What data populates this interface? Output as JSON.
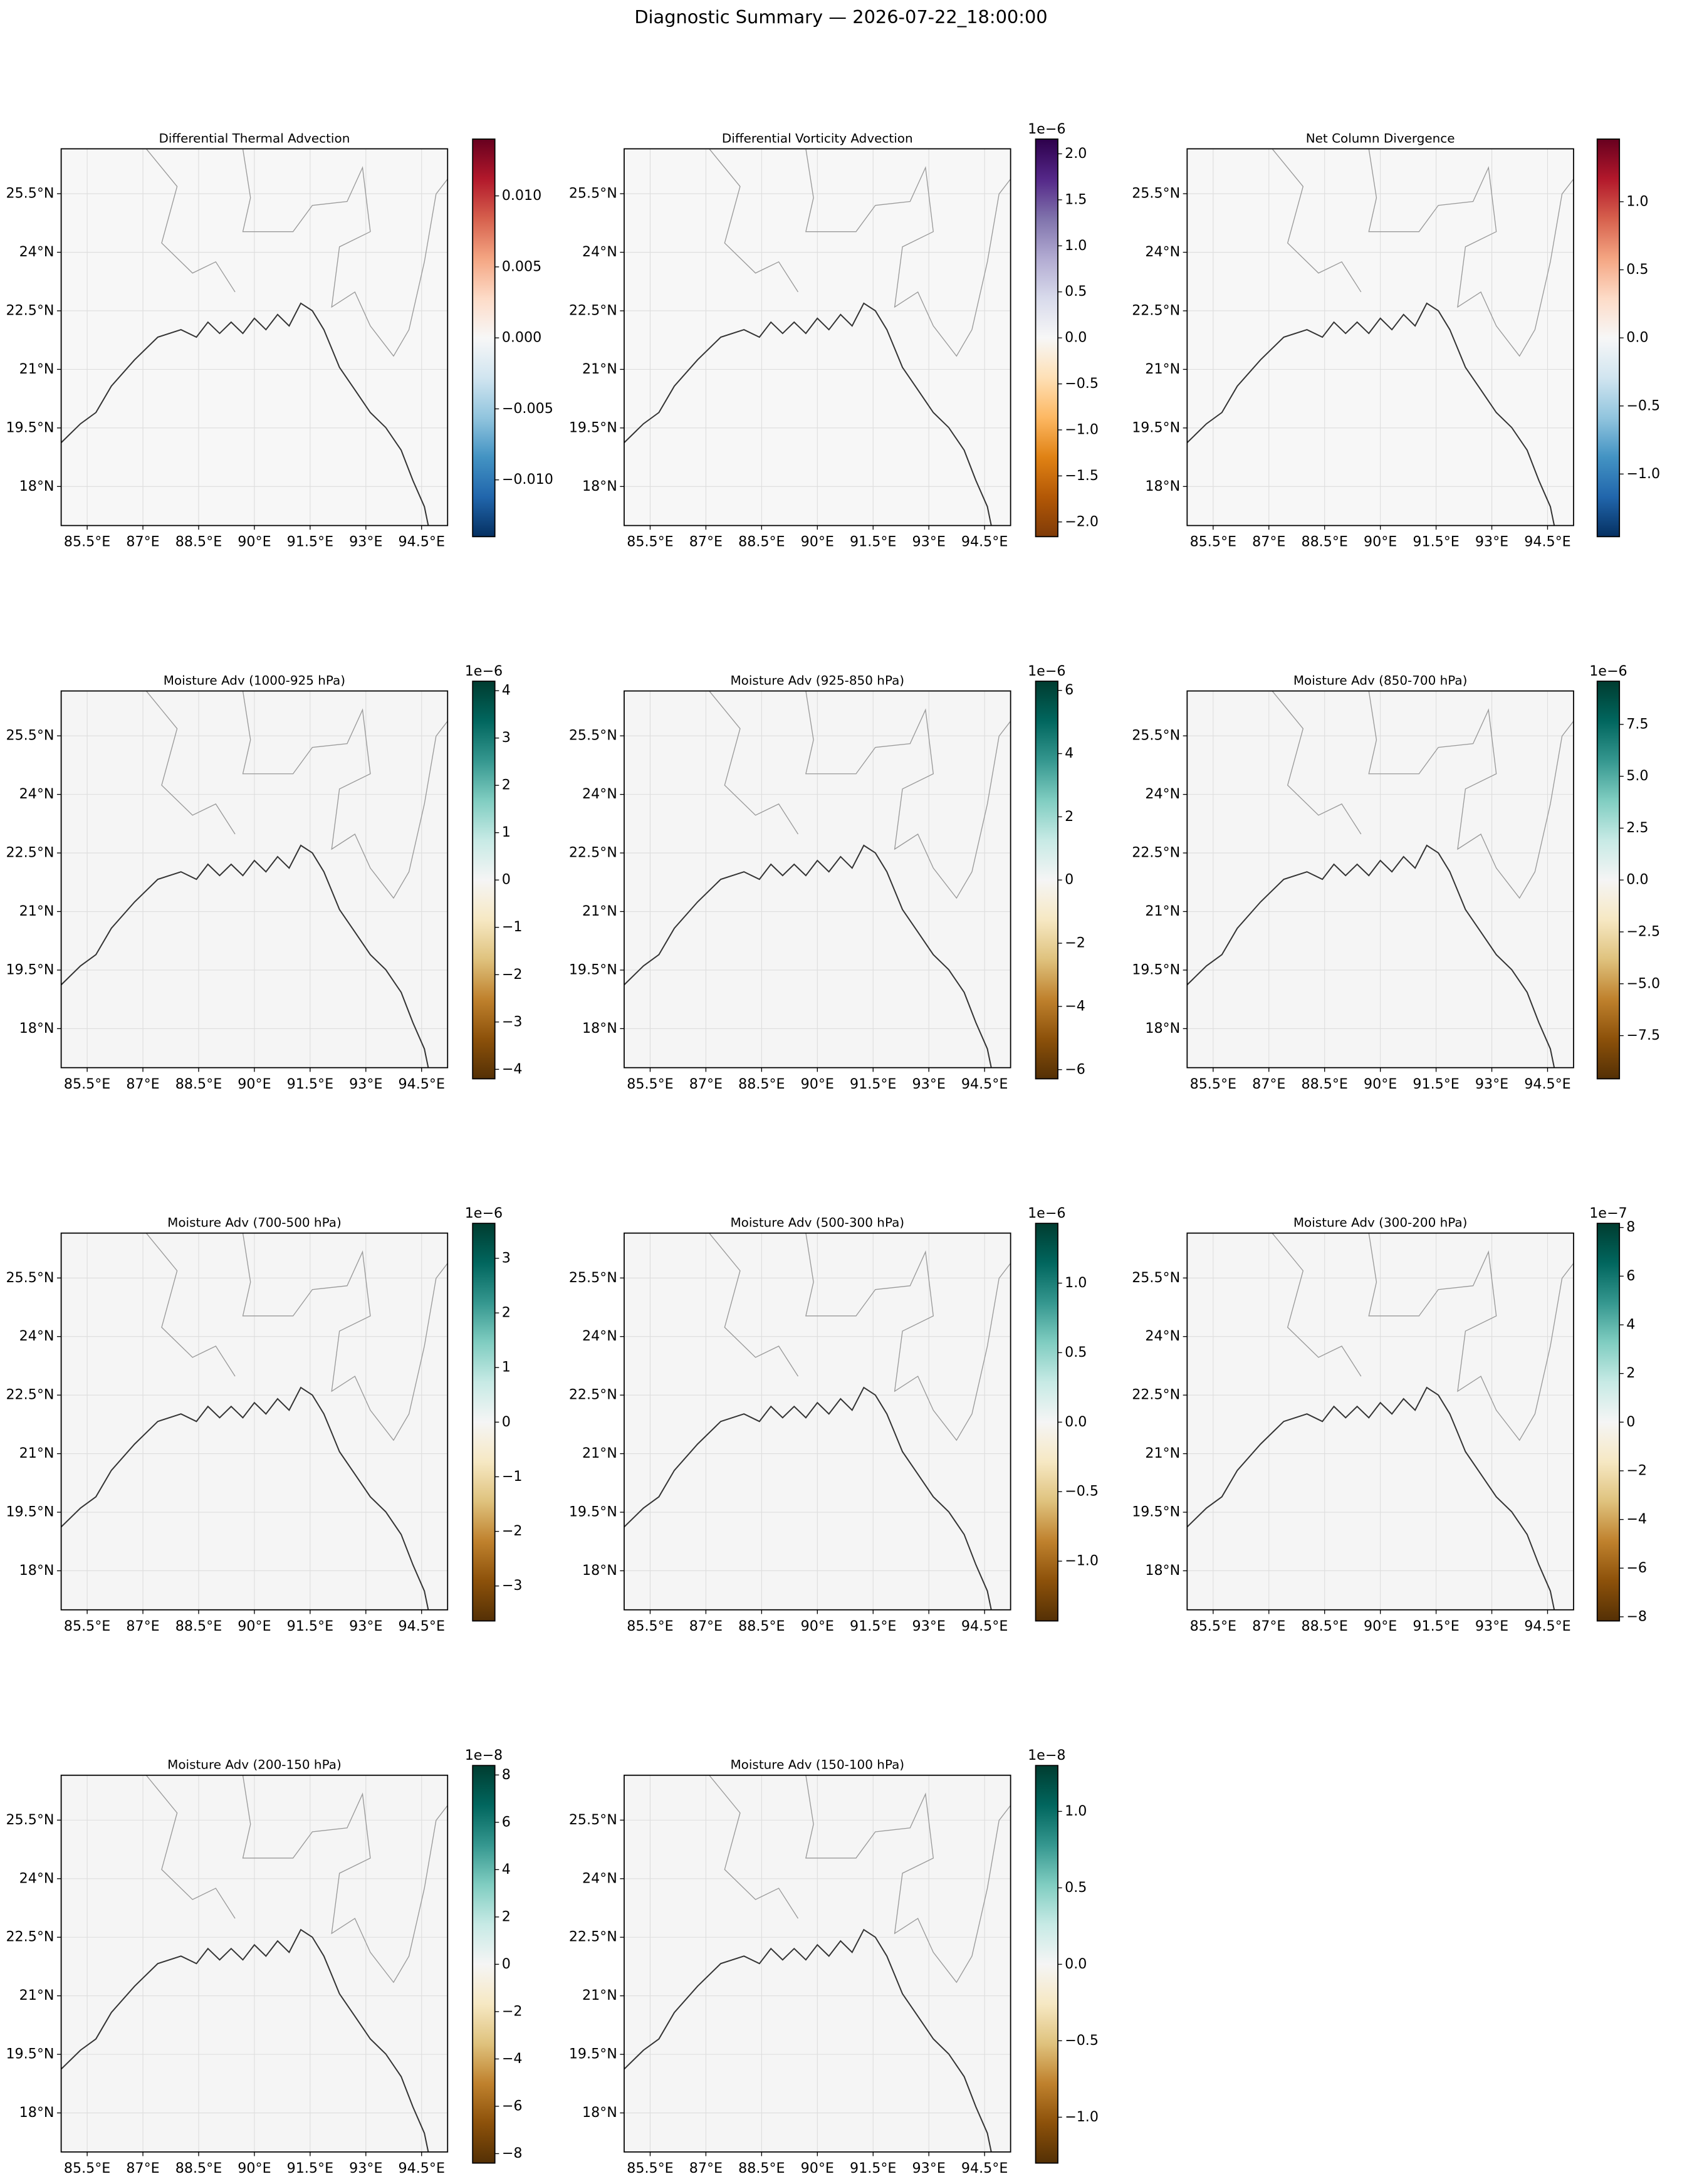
{
  "title": "Diagnostic Summary — 2026-07-22_18:00:00",
  "chart_data": [
    {
      "type": "heatmap",
      "title": "Differential Thermal Advection",
      "colormap": "RdBu_r",
      "grid": true,
      "xlim": [
        84.8,
        95.2
      ],
      "ylim": [
        17.0,
        26.65
      ],
      "xticks": [
        {
          "value": 85.5,
          "label": "85.5°E"
        },
        {
          "value": 87,
          "label": "87°E"
        },
        {
          "value": 88.5,
          "label": "88.5°E"
        },
        {
          "value": 90,
          "label": "90°E"
        },
        {
          "value": 91.5,
          "label": "91.5°E"
        },
        {
          "value": 93,
          "label": "93°E"
        },
        {
          "value": 94.5,
          "label": "94.5°E"
        }
      ],
      "yticks": [
        {
          "value": 18,
          "label": "18°N"
        },
        {
          "value": 19.5,
          "label": "19.5°N"
        },
        {
          "value": 21,
          "label": "21°N"
        },
        {
          "value": 22.5,
          "label": "22.5°N"
        },
        {
          "value": 24,
          "label": "24°N"
        },
        {
          "value": 25.5,
          "label": "25.5°N"
        }
      ],
      "clim": [
        -0.014,
        0.014
      ],
      "cticks": [
        {
          "value": -0.01,
          "label": "−0.010"
        },
        {
          "value": -0.005,
          "label": "−0.005"
        },
        {
          "value": 0,
          "label": "0.000"
        },
        {
          "value": 0.005,
          "label": "0.005"
        },
        {
          "value": 0.01,
          "label": "0.010"
        }
      ]
    },
    {
      "type": "heatmap",
      "title": "Differential Vorticity Advection",
      "colormap": "PuOr",
      "grid": true,
      "xlim": [
        84.8,
        95.2
      ],
      "ylim": [
        17.0,
        26.65
      ],
      "xticks": [
        {
          "value": 85.5,
          "label": "85.5°E"
        },
        {
          "value": 87,
          "label": "87°E"
        },
        {
          "value": 88.5,
          "label": "88.5°E"
        },
        {
          "value": 90,
          "label": "90°E"
        },
        {
          "value": 91.5,
          "label": "91.5°E"
        },
        {
          "value": 93,
          "label": "93°E"
        },
        {
          "value": 94.5,
          "label": "94.5°E"
        }
      ],
      "yticks": [
        {
          "value": 18,
          "label": "18°N"
        },
        {
          "value": 19.5,
          "label": "19.5°N"
        },
        {
          "value": 21,
          "label": "21°N"
        },
        {
          "value": 22.5,
          "label": "22.5°N"
        },
        {
          "value": 24,
          "label": "24°N"
        },
        {
          "value": 25.5,
          "label": "25.5°N"
        }
      ],
      "clim": [
        -2.16,
        2.16
      ],
      "offset_text": "1e−6",
      "cticks": [
        {
          "value": -2,
          "label": "−2.0"
        },
        {
          "value": -1.5,
          "label": "−1.5"
        },
        {
          "value": -1,
          "label": "−1.0"
        },
        {
          "value": -0.5,
          "label": "−0.5"
        },
        {
          "value": 0,
          "label": "0.0"
        },
        0.5,
        {
          "value": 1,
          "label": "1.0"
        },
        1.5,
        {
          "value": 2,
          "label": "2.0"
        }
      ]
    },
    {
      "type": "heatmap",
      "title": "Net Column Divergence",
      "colormap": "RdBu_r",
      "grid": true,
      "xlim": [
        84.8,
        95.2
      ],
      "ylim": [
        17.0,
        26.65
      ],
      "xticks": [
        {
          "value": 85.5,
          "label": "85.5°E"
        },
        {
          "value": 87,
          "label": "87°E"
        },
        {
          "value": 88.5,
          "label": "88.5°E"
        },
        {
          "value": 90,
          "label": "90°E"
        },
        {
          "value": 91.5,
          "label": "91.5°E"
        },
        {
          "value": 93,
          "label": "93°E"
        },
        {
          "value": 94.5,
          "label": "94.5°E"
        }
      ],
      "yticks": [
        {
          "value": 18,
          "label": "18°N"
        },
        {
          "value": 19.5,
          "label": "19.5°N"
        },
        {
          "value": 21,
          "label": "21°N"
        },
        {
          "value": 22.5,
          "label": "22.5°N"
        },
        {
          "value": 24,
          "label": "24°N"
        },
        {
          "value": 25.5,
          "label": "25.5°N"
        }
      ],
      "clim": [
        -1.46,
        1.46
      ],
      "cticks": [
        {
          "value": -1,
          "label": "−1.0"
        },
        {
          "value": -0.5,
          "label": "−0.5"
        },
        {
          "value": 0,
          "label": "0.0"
        },
        0.5,
        {
          "value": 1,
          "label": "1.0"
        }
      ]
    },
    {
      "type": "heatmap",
      "title": "Moisture Adv (1000-925 hPa)",
      "colormap": "BrBG",
      "grid": true,
      "xlim": [
        84.8,
        95.2
      ],
      "ylim": [
        17.0,
        26.65
      ],
      "xticks": [
        {
          "value": 85.5,
          "label": "85.5°E"
        },
        {
          "value": 87,
          "label": "87°E"
        },
        {
          "value": 88.5,
          "label": "88.5°E"
        },
        {
          "value": 90,
          "label": "90°E"
        },
        {
          "value": 91.5,
          "label": "91.5°E"
        },
        {
          "value": 93,
          "label": "93°E"
        },
        {
          "value": 94.5,
          "label": "94.5°E"
        }
      ],
      "yticks": [
        {
          "value": 18,
          "label": "18°N"
        },
        {
          "value": 19.5,
          "label": "19.5°N"
        },
        {
          "value": 21,
          "label": "21°N"
        },
        {
          "value": 22.5,
          "label": "22.5°N"
        },
        {
          "value": 24,
          "label": "24°N"
        },
        {
          "value": 25.5,
          "label": "25.5°N"
        }
      ],
      "clim": [
        -4.2,
        4.2
      ],
      "offset_text": "1e−6",
      "cticks": [
        {
          "value": -4,
          "label": "−4"
        },
        {
          "value": -3,
          "label": "−3"
        },
        {
          "value": -2,
          "label": "−2"
        },
        {
          "value": -1,
          "label": "−1"
        },
        0,
        1,
        2,
        3,
        4
      ]
    },
    {
      "type": "heatmap",
      "title": "Moisture Adv (925-850 hPa)",
      "colormap": "BrBG",
      "grid": true,
      "xlim": [
        84.8,
        95.2
      ],
      "ylim": [
        17.0,
        26.65
      ],
      "xticks": [
        {
          "value": 85.5,
          "label": "85.5°E"
        },
        {
          "value": 87,
          "label": "87°E"
        },
        {
          "value": 88.5,
          "label": "88.5°E"
        },
        {
          "value": 90,
          "label": "90°E"
        },
        {
          "value": 91.5,
          "label": "91.5°E"
        },
        {
          "value": 93,
          "label": "93°E"
        },
        {
          "value": 94.5,
          "label": "94.5°E"
        }
      ],
      "yticks": [
        {
          "value": 18,
          "label": "18°N"
        },
        {
          "value": 19.5,
          "label": "19.5°N"
        },
        {
          "value": 21,
          "label": "21°N"
        },
        {
          "value": 22.5,
          "label": "22.5°N"
        },
        {
          "value": 24,
          "label": "24°N"
        },
        {
          "value": 25.5,
          "label": "25.5°N"
        }
      ],
      "clim": [
        -6.29,
        6.29
      ],
      "offset_text": "1e−6",
      "cticks": [
        {
          "value": -6,
          "label": "−6"
        },
        {
          "value": -4,
          "label": "−4"
        },
        {
          "value": -2,
          "label": "−2"
        },
        0,
        2,
        4,
        6
      ]
    },
    {
      "type": "heatmap",
      "title": "Moisture Adv (850-700 hPa)",
      "colormap": "BrBG",
      "grid": true,
      "xlim": [
        84.8,
        95.2
      ],
      "ylim": [
        17.0,
        26.65
      ],
      "xticks": [
        {
          "value": 85.5,
          "label": "85.5°E"
        },
        {
          "value": 87,
          "label": "87°E"
        },
        {
          "value": 88.5,
          "label": "88.5°E"
        },
        {
          "value": 90,
          "label": "90°E"
        },
        {
          "value": 91.5,
          "label": "91.5°E"
        },
        {
          "value": 93,
          "label": "93°E"
        },
        {
          "value": 94.5,
          "label": "94.5°E"
        }
      ],
      "yticks": [
        {
          "value": 18,
          "label": "18°N"
        },
        {
          "value": 19.5,
          "label": "19.5°N"
        },
        {
          "value": 21,
          "label": "21°N"
        },
        {
          "value": 22.5,
          "label": "22.5°N"
        },
        {
          "value": 24,
          "label": "24°N"
        },
        {
          "value": 25.5,
          "label": "25.5°N"
        }
      ],
      "clim": [
        -9.58,
        9.58
      ],
      "offset_text": "1e−6",
      "cticks": [
        {
          "value": -7.5,
          "label": "−7.5"
        },
        {
          "value": -5,
          "label": "−5.0"
        },
        {
          "value": -2.5,
          "label": "−2.5"
        },
        {
          "value": 0,
          "label": "0.0"
        },
        2.5,
        {
          "value": 5,
          "label": "5.0"
        },
        7.5
      ]
    },
    {
      "type": "heatmap",
      "title": "Moisture Adv (700-500 hPa)",
      "colormap": "BrBG",
      "grid": true,
      "xlim": [
        84.8,
        95.2
      ],
      "ylim": [
        17.0,
        26.65
      ],
      "xticks": [
        {
          "value": 85.5,
          "label": "85.5°E"
        },
        {
          "value": 87,
          "label": "87°E"
        },
        {
          "value": 88.5,
          "label": "88.5°E"
        },
        {
          "value": 90,
          "label": "90°E"
        },
        {
          "value": 91.5,
          "label": "91.5°E"
        },
        {
          "value": 93,
          "label": "93°E"
        },
        {
          "value": 94.5,
          "label": "94.5°E"
        }
      ],
      "yticks": [
        {
          "value": 18,
          "label": "18°N"
        },
        {
          "value": 19.5,
          "label": "19.5°N"
        },
        {
          "value": 21,
          "label": "21°N"
        },
        {
          "value": 22.5,
          "label": "22.5°N"
        },
        {
          "value": 24,
          "label": "24°N"
        },
        {
          "value": 25.5,
          "label": "25.5°N"
        }
      ],
      "clim": [
        -3.64,
        3.64
      ],
      "offset_text": "1e−6",
      "cticks": [
        {
          "value": -3,
          "label": "−3"
        },
        {
          "value": -2,
          "label": "−2"
        },
        {
          "value": -1,
          "label": "−1"
        },
        0,
        1,
        2,
        3
      ]
    },
    {
      "type": "heatmap",
      "title": "Moisture Adv (500-300 hPa)",
      "colormap": "BrBG",
      "grid": true,
      "xlim": [
        84.8,
        95.2
      ],
      "ylim": [
        17.0,
        26.65
      ],
      "xticks": [
        {
          "value": 85.5,
          "label": "85.5°E"
        },
        {
          "value": 87,
          "label": "87°E"
        },
        {
          "value": 88.5,
          "label": "88.5°E"
        },
        {
          "value": 90,
          "label": "90°E"
        },
        {
          "value": 91.5,
          "label": "91.5°E"
        },
        {
          "value": 93,
          "label": "93°E"
        },
        {
          "value": 94.5,
          "label": "94.5°E"
        }
      ],
      "yticks": [
        {
          "value": 18,
          "label": "18°N"
        },
        {
          "value": 19.5,
          "label": "19.5°N"
        },
        {
          "value": 21,
          "label": "21°N"
        },
        {
          "value": 22.5,
          "label": "22.5°N"
        },
        {
          "value": 24,
          "label": "24°N"
        },
        {
          "value": 25.5,
          "label": "25.5°N"
        }
      ],
      "clim": [
        -1.43,
        1.43
      ],
      "offset_text": "1e−6",
      "cticks": [
        {
          "value": -1,
          "label": "−1.0"
        },
        {
          "value": -0.5,
          "label": "−0.5"
        },
        {
          "value": 0,
          "label": "0.0"
        },
        0.5,
        {
          "value": 1,
          "label": "1.0"
        }
      ]
    },
    {
      "type": "heatmap",
      "title": "Moisture Adv (300-200 hPa)",
      "colormap": "BrBG",
      "grid": true,
      "xlim": [
        84.8,
        95.2
      ],
      "ylim": [
        17.0,
        26.65
      ],
      "xticks": [
        {
          "value": 85.5,
          "label": "85.5°E"
        },
        {
          "value": 87,
          "label": "87°E"
        },
        {
          "value": 88.5,
          "label": "88.5°E"
        },
        {
          "value": 90,
          "label": "90°E"
        },
        {
          "value": 91.5,
          "label": "91.5°E"
        },
        {
          "value": 93,
          "label": "93°E"
        },
        {
          "value": 94.5,
          "label": "94.5°E"
        }
      ],
      "yticks": [
        {
          "value": 18,
          "label": "18°N"
        },
        {
          "value": 19.5,
          "label": "19.5°N"
        },
        {
          "value": 21,
          "label": "21°N"
        },
        {
          "value": 22.5,
          "label": "22.5°N"
        },
        {
          "value": 24,
          "label": "24°N"
        },
        {
          "value": 25.5,
          "label": "25.5°N"
        }
      ],
      "clim": [
        -8.17,
        8.17
      ],
      "offset_text": "1e−7",
      "cticks": [
        {
          "value": -8,
          "label": "−8"
        },
        {
          "value": -6,
          "label": "−6"
        },
        {
          "value": -4,
          "label": "−4"
        },
        {
          "value": -2,
          "label": "−2"
        },
        0,
        2,
        4,
        6,
        8
      ]
    },
    {
      "type": "heatmap",
      "title": "Moisture Adv (200-150 hPa)",
      "colormap": "BrBG",
      "grid": true,
      "xlim": [
        84.8,
        95.2
      ],
      "ylim": [
        17.0,
        26.65
      ],
      "xticks": [
        {
          "value": 85.5,
          "label": "85.5°E"
        },
        {
          "value": 87,
          "label": "87°E"
        },
        {
          "value": 88.5,
          "label": "88.5°E"
        },
        {
          "value": 90,
          "label": "90°E"
        },
        {
          "value": 91.5,
          "label": "91.5°E"
        },
        {
          "value": 93,
          "label": "93°E"
        },
        {
          "value": 94.5,
          "label": "94.5°E"
        }
      ],
      "yticks": [
        {
          "value": 18,
          "label": "18°N"
        },
        {
          "value": 19.5,
          "label": "19.5°N"
        },
        {
          "value": 21,
          "label": "21°N"
        },
        {
          "value": 22.5,
          "label": "22.5°N"
        },
        {
          "value": 24,
          "label": "24°N"
        },
        {
          "value": 25.5,
          "label": "25.5°N"
        }
      ],
      "clim": [
        -8.4,
        8.4
      ],
      "offset_text": "1e−8",
      "cticks": [
        {
          "value": -8,
          "label": "−8"
        },
        {
          "value": -6,
          "label": "−6"
        },
        {
          "value": -4,
          "label": "−4"
        },
        {
          "value": -2,
          "label": "−2"
        },
        0,
        2,
        4,
        6,
        8
      ]
    },
    {
      "type": "heatmap",
      "title": "Moisture Adv (150-100 hPa)",
      "colormap": "BrBG",
      "grid": true,
      "xlim": [
        84.8,
        95.2
      ],
      "ylim": [
        17.0,
        26.65
      ],
      "xticks": [
        {
          "value": 85.5,
          "label": "85.5°E"
        },
        {
          "value": 87,
          "label": "87°E"
        },
        {
          "value": 88.5,
          "label": "88.5°E"
        },
        {
          "value": 90,
          "label": "90°E"
        },
        {
          "value": 91.5,
          "label": "91.5°E"
        },
        {
          "value": 93,
          "label": "93°E"
        },
        {
          "value": 94.5,
          "label": "94.5°E"
        }
      ],
      "yticks": [
        {
          "value": 18,
          "label": "18°N"
        },
        {
          "value": 19.5,
          "label": "19.5°N"
        },
        {
          "value": 21,
          "label": "21°N"
        },
        {
          "value": 22.5,
          "label": "22.5°N"
        },
        {
          "value": 24,
          "label": "24°N"
        },
        {
          "value": 25.5,
          "label": "25.5°N"
        }
      ],
      "clim": [
        -1.3,
        1.3
      ],
      "offset_text": "1e−8",
      "cticks": [
        {
          "value": -1,
          "label": "−1.0"
        },
        {
          "value": -0.5,
          "label": "−0.5"
        },
        {
          "value": 0,
          "label": "0.0"
        },
        0.5,
        {
          "value": 1,
          "label": "1.0"
        }
      ]
    }
  ]
}
